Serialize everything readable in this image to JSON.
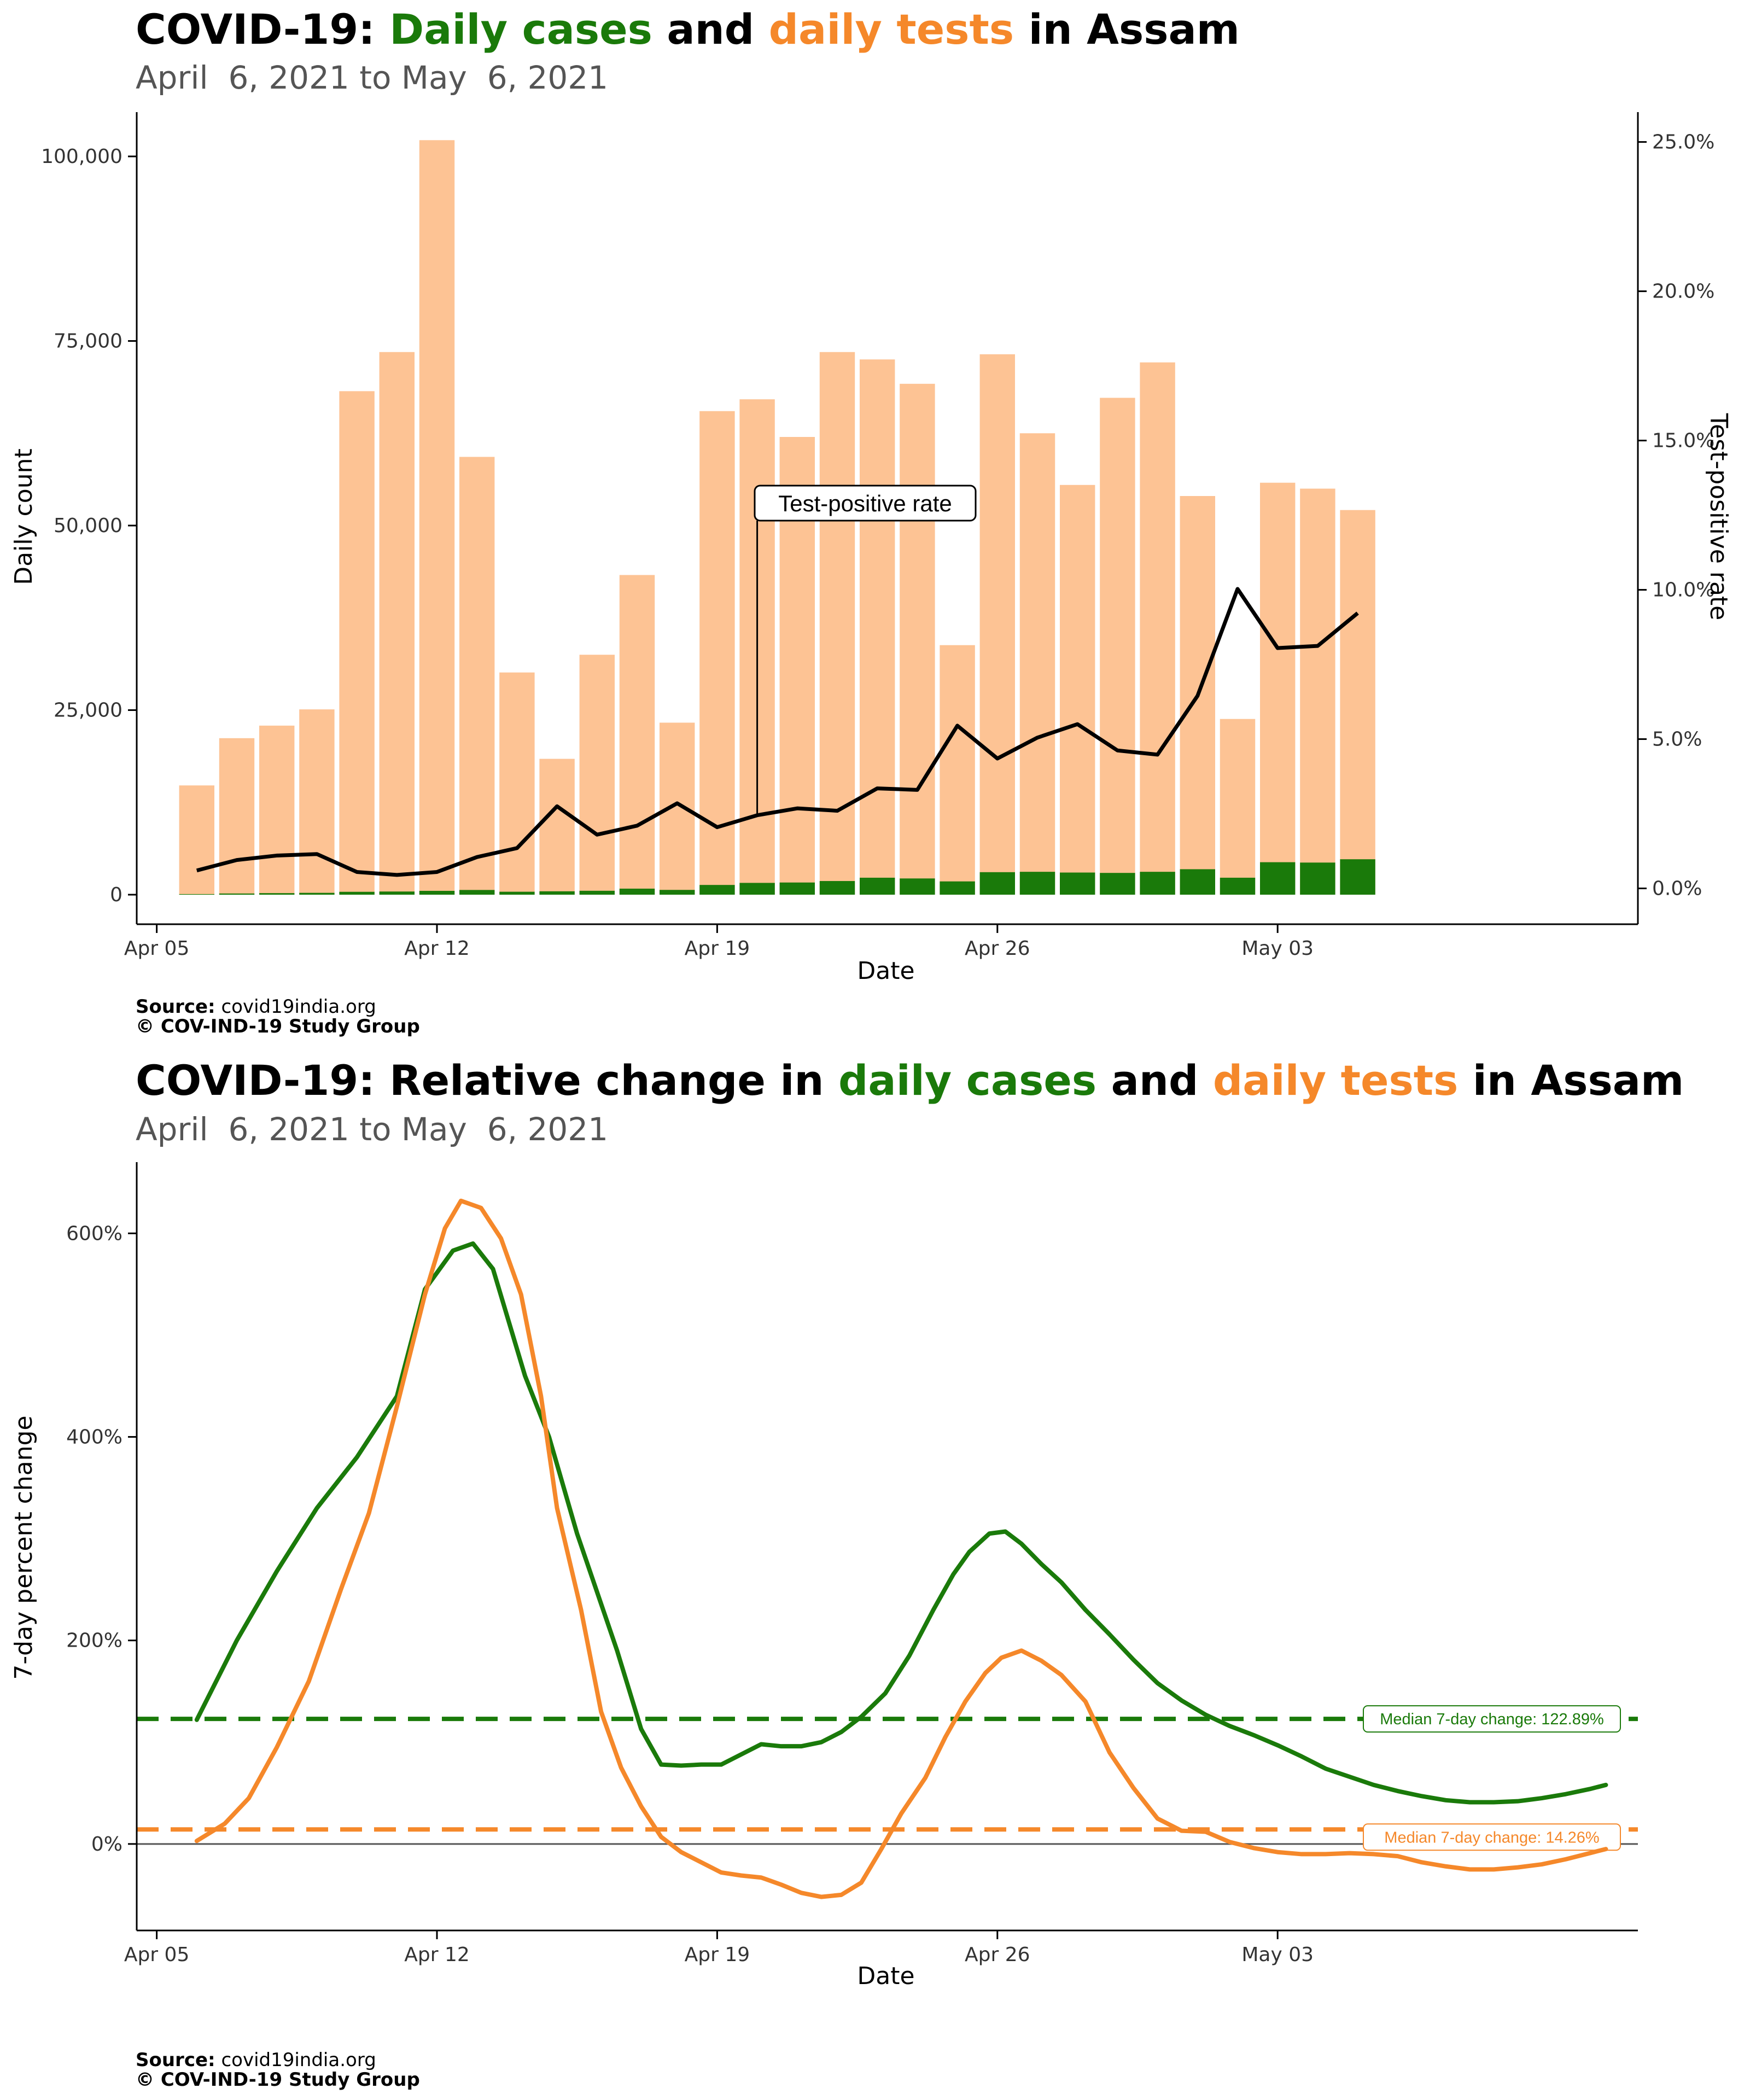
{
  "colors": {
    "cases": "#1a7a0a",
    "tests": "#f5882a",
    "tests_bar": "#fdc394",
    "tpr": "#000000"
  },
  "chart_data": [
    {
      "type": "bar",
      "title": {
        "prefix": "COVID-19: ",
        "cases": "Daily cases",
        "mid": " and ",
        "tests": "daily tests",
        "suffix": " in Assam"
      },
      "subtitle": "April  6, 2021 to May  6, 2021",
      "xlabel": "Date",
      "ylabel": "Daily count",
      "y2label": "Test-positive rate",
      "ylim": [
        -4000,
        106000
      ],
      "y2lim": [
        -0.012,
        0.26
      ],
      "x_range": [
        -1.5,
        36
      ],
      "x_ticks": [
        {
          "label": "Apr 05",
          "day": -1
        },
        {
          "label": "Apr 12",
          "day": 6
        },
        {
          "label": "Apr 19",
          "day": 13
        },
        {
          "label": "Apr 26",
          "day": 20
        },
        {
          "label": "May 03",
          "day": 27
        }
      ],
      "y_ticks": [
        {
          "label": "0",
          "value": 0
        },
        {
          "label": "25,000",
          "value": 25000
        },
        {
          "label": "50,000",
          "value": 50000
        },
        {
          "label": "75,000",
          "value": 75000
        },
        {
          "label": "100,000",
          "value": 100000
        }
      ],
      "y2_ticks": [
        {
          "label": "0.0%",
          "value": 0
        },
        {
          "label": "5.0%",
          "value": 0.05
        },
        {
          "label": "10.0%",
          "value": 0.1
        },
        {
          "label": "15.0%",
          "value": 0.15
        },
        {
          "label": "20.0%",
          "value": 0.2
        },
        {
          "label": "25.0%",
          "value": 0.25
        }
      ],
      "dates": [
        "Apr 6",
        "Apr 7",
        "Apr 8",
        "Apr 9",
        "Apr 10",
        "Apr 11",
        "Apr 12",
        "Apr 13",
        "Apr 14",
        "Apr 15",
        "Apr 16",
        "Apr 17",
        "Apr 18",
        "Apr 19",
        "Apr 20",
        "Apr 21",
        "Apr 22",
        "Apr 23",
        "Apr 24",
        "Apr 25",
        "Apr 26",
        "Apr 27",
        "Apr 28",
        "Apr 29",
        "Apr 30",
        "May 1",
        "May 2",
        "May 3",
        "May 4",
        "May 5",
        "May 6"
      ],
      "series": [
        {
          "name": "daily tests",
          "values": [
            14800,
            21200,
            22900,
            25100,
            68200,
            73500,
            102200,
            59300,
            30100,
            18400,
            32500,
            43300,
            23300,
            65500,
            67100,
            62000,
            73500,
            72500,
            69200,
            33800,
            73200,
            62500,
            55500,
            67300,
            72100,
            54000,
            23800,
            55800,
            55000,
            52100,
            0
          ]
        },
        {
          "name": "daily cases",
          "values": [
            80,
            160,
            210,
            250,
            390,
            430,
            520,
            640,
            400,
            460,
            530,
            820,
            650,
            1320,
            1600,
            1650,
            1850,
            2300,
            2200,
            1800,
            3050,
            3100,
            3000,
            2950,
            3100,
            3450,
            2300,
            4400,
            4350,
            4800,
            0
          ]
        },
        {
          "name": "test-positive rate",
          "values": [
            0.006,
            0.0095,
            0.011,
            0.0115,
            0.0055,
            0.0045,
            0.0055,
            0.0105,
            0.0135,
            0.0275,
            0.018,
            0.021,
            0.0285,
            0.0205,
            0.0245,
            0.0268,
            0.026,
            0.0335,
            0.033,
            0.0545,
            0.0435,
            0.0505,
            0.055,
            0.0462,
            0.0448,
            0.0645,
            0.1003,
            0.0805,
            0.0812,
            0.0922,
            null
          ]
        }
      ],
      "annotation": {
        "label": "Test-positive rate",
        "day": 14
      },
      "caption": {
        "source_label": "Source:",
        "source_text": " covid19india.org",
        "copyright": "© COV-IND-19 Study Group"
      }
    },
    {
      "type": "line",
      "title": {
        "prefix": "COVID-19: Relative change in ",
        "cases": "daily cases",
        "mid": " and ",
        "tests": "daily tests",
        "suffix": " in Assam"
      },
      "subtitle": "April  6, 2021 to May  6, 2021",
      "xlabel": "Date",
      "ylabel": "7-day percent change",
      "ylim": [
        -85,
        670
      ],
      "x_range": [
        -1.5,
        36
      ],
      "x_ticks": [
        {
          "label": "Apr 05",
          "day": -1
        },
        {
          "label": "Apr 12",
          "day": 6
        },
        {
          "label": "Apr 19",
          "day": 13
        },
        {
          "label": "Apr 26",
          "day": 20
        },
        {
          "label": "May 03",
          "day": 27
        }
      ],
      "y_ticks": [
        {
          "label": "0%",
          "value": 0
        },
        {
          "label": "200%",
          "value": 200
        },
        {
          "label": "400%",
          "value": 400
        },
        {
          "label": "600%",
          "value": 600
        }
      ],
      "series": [
        {
          "name": "daily cases",
          "points": [
            [
              0,
              122
            ],
            [
              1,
              200
            ],
            [
              2,
              268
            ],
            [
              3,
              330
            ],
            [
              4,
              380
            ],
            [
              5,
              440
            ],
            [
              5.7,
              545
            ],
            [
              6.4,
              583
            ],
            [
              6.9,
              590
            ],
            [
              7.4,
              565
            ],
            [
              8.2,
              460
            ],
            [
              8.8,
              400
            ],
            [
              9.5,
              305
            ],
            [
              10.5,
              190
            ],
            [
              11.1,
              113
            ],
            [
              11.6,
              78
            ],
            [
              12.1,
              77
            ],
            [
              12.6,
              78
            ],
            [
              13.1,
              78
            ],
            [
              13.6,
              88
            ],
            [
              14.1,
              98
            ],
            [
              14.6,
              96
            ],
            [
              15.1,
              96
            ],
            [
              15.6,
              100
            ],
            [
              16.1,
              110
            ],
            [
              16.6,
              125
            ],
            [
              17.2,
              148
            ],
            [
              17.8,
              185
            ],
            [
              18.4,
              230
            ],
            [
              18.9,
              265
            ],
            [
              19.3,
              287
            ],
            [
              19.8,
              305
            ],
            [
              20.2,
              307
            ],
            [
              20.6,
              295
            ],
            [
              21.1,
              275
            ],
            [
              21.6,
              257
            ],
            [
              22.2,
              230
            ],
            [
              22.8,
              206
            ],
            [
              23.4,
              181
            ],
            [
              24,
              158
            ],
            [
              24.6,
              141
            ],
            [
              25.2,
              127
            ],
            [
              25.8,
              116
            ],
            [
              26.4,
              107
            ],
            [
              27,
              97
            ],
            [
              27.6,
              86
            ],
            [
              28.2,
              74
            ],
            [
              28.8,
              66
            ],
            [
              29.4,
              58
            ],
            [
              30,
              52
            ],
            [
              30.6,
              47
            ],
            [
              31.2,
              43
            ],
            [
              31.8,
              41
            ],
            [
              32.4,
              41
            ],
            [
              33,
              42
            ],
            [
              33.6,
              45
            ],
            [
              34.2,
              49
            ],
            [
              34.8,
              54
            ],
            [
              35.2,
              58
            ]
          ]
        },
        {
          "name": "daily tests",
          "points": [
            [
              0,
              3
            ],
            [
              0.7,
              20
            ],
            [
              1.3,
              45
            ],
            [
              2,
              95
            ],
            [
              2.8,
              160
            ],
            [
              3.6,
              250
            ],
            [
              4.3,
              325
            ],
            [
              5,
              430
            ],
            [
              5.7,
              540
            ],
            [
              6.2,
              605
            ],
            [
              6.6,
              632
            ],
            [
              7.1,
              625
            ],
            [
              7.6,
              595
            ],
            [
              8.1,
              540
            ],
            [
              8.6,
              440
            ],
            [
              9,
              330
            ],
            [
              9.6,
              230
            ],
            [
              10.1,
              130
            ],
            [
              10.6,
              75
            ],
            [
              11.1,
              37
            ],
            [
              11.6,
              7
            ],
            [
              12.1,
              -8
            ],
            [
              12.6,
              -18
            ],
            [
              13.1,
              -28
            ],
            [
              13.6,
              -31
            ],
            [
              14.1,
              -33
            ],
            [
              14.6,
              -40
            ],
            [
              15.1,
              -48
            ],
            [
              15.6,
              -52
            ],
            [
              16.1,
              -50
            ],
            [
              16.6,
              -38
            ],
            [
              17.1,
              -5
            ],
            [
              17.6,
              30
            ],
            [
              18.2,
              65
            ],
            [
              18.7,
              105
            ],
            [
              19.2,
              140
            ],
            [
              19.7,
              168
            ],
            [
              20.1,
              183
            ],
            [
              20.6,
              190
            ],
            [
              21.1,
              180
            ],
            [
              21.6,
              166
            ],
            [
              22.2,
              140
            ],
            [
              22.8,
              90
            ],
            [
              23.4,
              55
            ],
            [
              24,
              25
            ],
            [
              24.6,
              13
            ],
            [
              25.2,
              12
            ],
            [
              25.8,
              2
            ],
            [
              26.4,
              -4
            ],
            [
              27,
              -8
            ],
            [
              27.6,
              -10
            ],
            [
              28.2,
              -10
            ],
            [
              28.8,
              -9
            ],
            [
              29.4,
              -10
            ],
            [
              30,
              -12
            ],
            [
              30.6,
              -18
            ],
            [
              31.2,
              -22
            ],
            [
              31.8,
              -25
            ],
            [
              32.4,
              -25
            ],
            [
              33,
              -23
            ],
            [
              33.6,
              -20
            ],
            [
              34.2,
              -15
            ],
            [
              34.8,
              -9
            ],
            [
              35.2,
              -5
            ]
          ]
        }
      ],
      "medians": [
        {
          "series": "daily cases",
          "value": 122.89,
          "label": "Median 7-day change: 122.89%"
        },
        {
          "series": "daily tests",
          "value": 14.26,
          "label": "Median 7-day change: 14.26%"
        }
      ],
      "caption": {
        "source_label": "Source:",
        "source_text": " covid19india.org",
        "copyright": "© COV-IND-19 Study Group"
      }
    }
  ]
}
